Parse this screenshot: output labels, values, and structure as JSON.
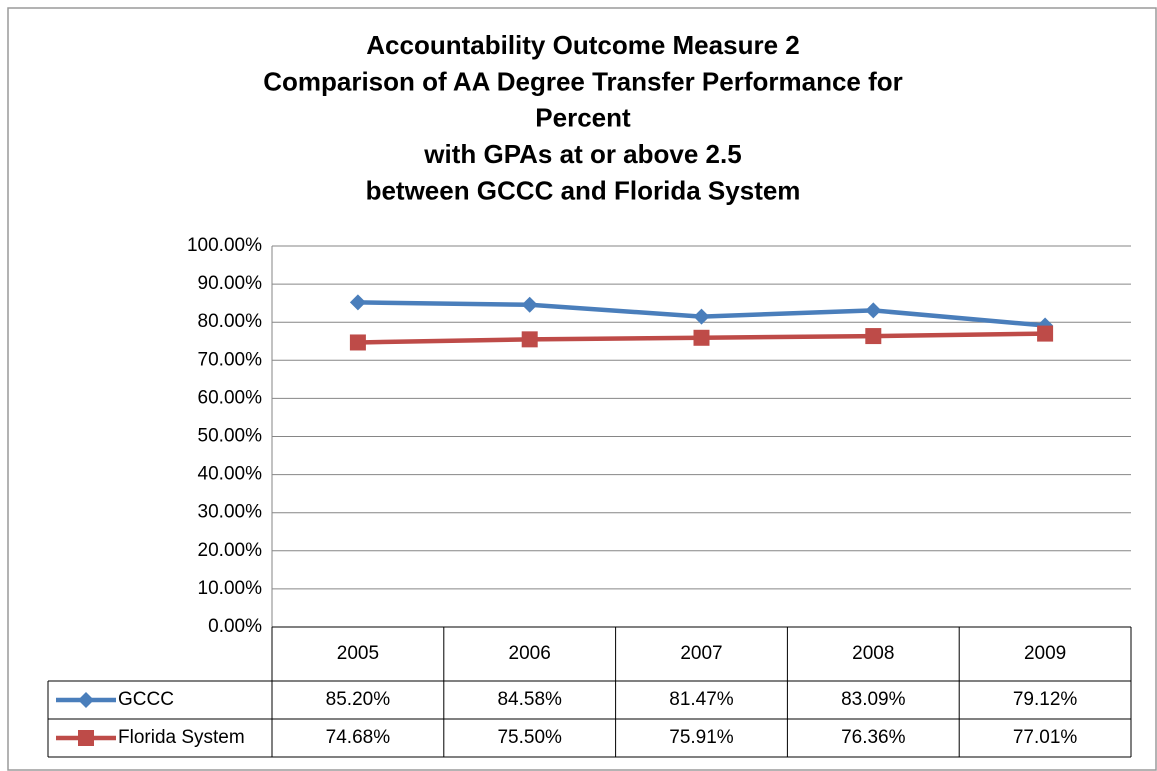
{
  "chart_data": {
    "type": "line",
    "title": [
      "Accountability Outcome Measure 2",
      "Comparison of AA Degree Transfer Performance for",
      "Percent",
      "with GPAs at or above 2.5",
      "between GCCC and Florida System"
    ],
    "categories": [
      "2005",
      "2006",
      "2007",
      "2008",
      "2009"
    ],
    "series": [
      {
        "name": "GCCC",
        "color": "#4a7ebb",
        "marker": "diamond",
        "values": [
          85.2,
          84.58,
          81.47,
          83.09,
          79.12
        ],
        "value_labels": [
          "85.20%",
          "84.58%",
          "81.47%",
          "83.09%",
          "79.12%"
        ]
      },
      {
        "name": "Florida System",
        "color": "#be4b48",
        "marker": "square",
        "values": [
          74.68,
          75.5,
          75.91,
          76.36,
          77.01
        ],
        "value_labels": [
          "74.68%",
          "75.50%",
          "75.91%",
          "76.36%",
          "77.01%"
        ]
      }
    ],
    "ylim": [
      0,
      100
    ],
    "yticks": [
      {
        "value": 0,
        "label": "0.00%"
      },
      {
        "value": 10,
        "label": "10.00%"
      },
      {
        "value": 20,
        "label": "20.00%"
      },
      {
        "value": 30,
        "label": "30.00%"
      },
      {
        "value": 40,
        "label": "40.00%"
      },
      {
        "value": 50,
        "label": "50.00%"
      },
      {
        "value": 60,
        "label": "60.00%"
      },
      {
        "value": 70,
        "label": "70.00%"
      },
      {
        "value": 80,
        "label": "80.00%"
      },
      {
        "value": 90,
        "label": "90.00%"
      },
      {
        "value": 100,
        "label": "100.00%"
      }
    ],
    "grid": true
  }
}
